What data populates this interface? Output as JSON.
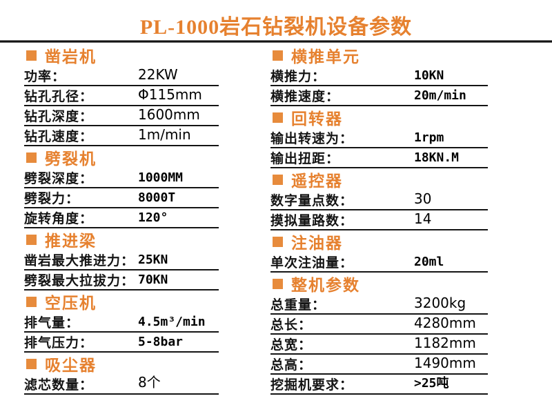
{
  "title": "PL-1000岩石钻裂机设备参数",
  "accent_color": "#E6812F",
  "left_sections": [
    {
      "heading": "凿岩机",
      "rows": [
        {
          "label": "功率：",
          "value": "22KW"
        },
        {
          "label": "钻孔孔径：",
          "value": "Φ115mm"
        },
        {
          "label": "钻孔深度：",
          "value": "1600mm"
        },
        {
          "label": "钻孔速度：",
          "value": "1m/min"
        }
      ]
    },
    {
      "heading": "劈裂机",
      "rows": [
        {
          "label": "劈裂深度：",
          "value": "1000MM"
        },
        {
          "label": "劈裂力：",
          "value": "8000T"
        },
        {
          "label": "旋转角度：",
          "value": "120°"
        }
      ]
    },
    {
      "heading": "推进梁",
      "rows": [
        {
          "label": "凿岩最大推进力：",
          "value": "25KN"
        },
        {
          "label": "劈裂最大拉拔力：",
          "value": "70KN"
        }
      ]
    },
    {
      "heading": "空压机",
      "rows": [
        {
          "label": "排气量：",
          "value": "4.5m³/min"
        },
        {
          "label": "排气压力：",
          "value": "5-8bar"
        }
      ]
    },
    {
      "heading": "吸尘器",
      "rows": [
        {
          "label": "滤芯数量：",
          "value": "8个"
        }
      ]
    }
  ],
  "right_sections": [
    {
      "heading": "横推单元",
      "rows": [
        {
          "label": "横推力：",
          "value": "10KN"
        },
        {
          "label": "横推速度：",
          "value": "20m/min"
        }
      ]
    },
    {
      "heading": "回转器",
      "rows": [
        {
          "label": "输出转速为：",
          "value": "1rpm"
        },
        {
          "label": "输出扭距：",
          "value": "18KN.M"
        }
      ]
    },
    {
      "heading": "遥控器",
      "rows": [
        {
          "label": "数字量点数：",
          "value": "30"
        },
        {
          "label": "摸拟量路数：",
          "value": "14"
        }
      ]
    },
    {
      "heading": "注油器",
      "rows": [
        {
          "label": "单次注油量：",
          "value": "20ml"
        }
      ]
    },
    {
      "heading": "整机参数",
      "rows": [
        {
          "label": "总重量：",
          "value": "3200kg"
        },
        {
          "label": "总长：",
          "value": "4280mm"
        },
        {
          "label": "总宽：",
          "value": "1182mm"
        },
        {
          "label": "总高：",
          "value": "1490mm"
        },
        {
          "label": "挖掘机要求：",
          "value": ">25吨"
        }
      ]
    }
  ]
}
